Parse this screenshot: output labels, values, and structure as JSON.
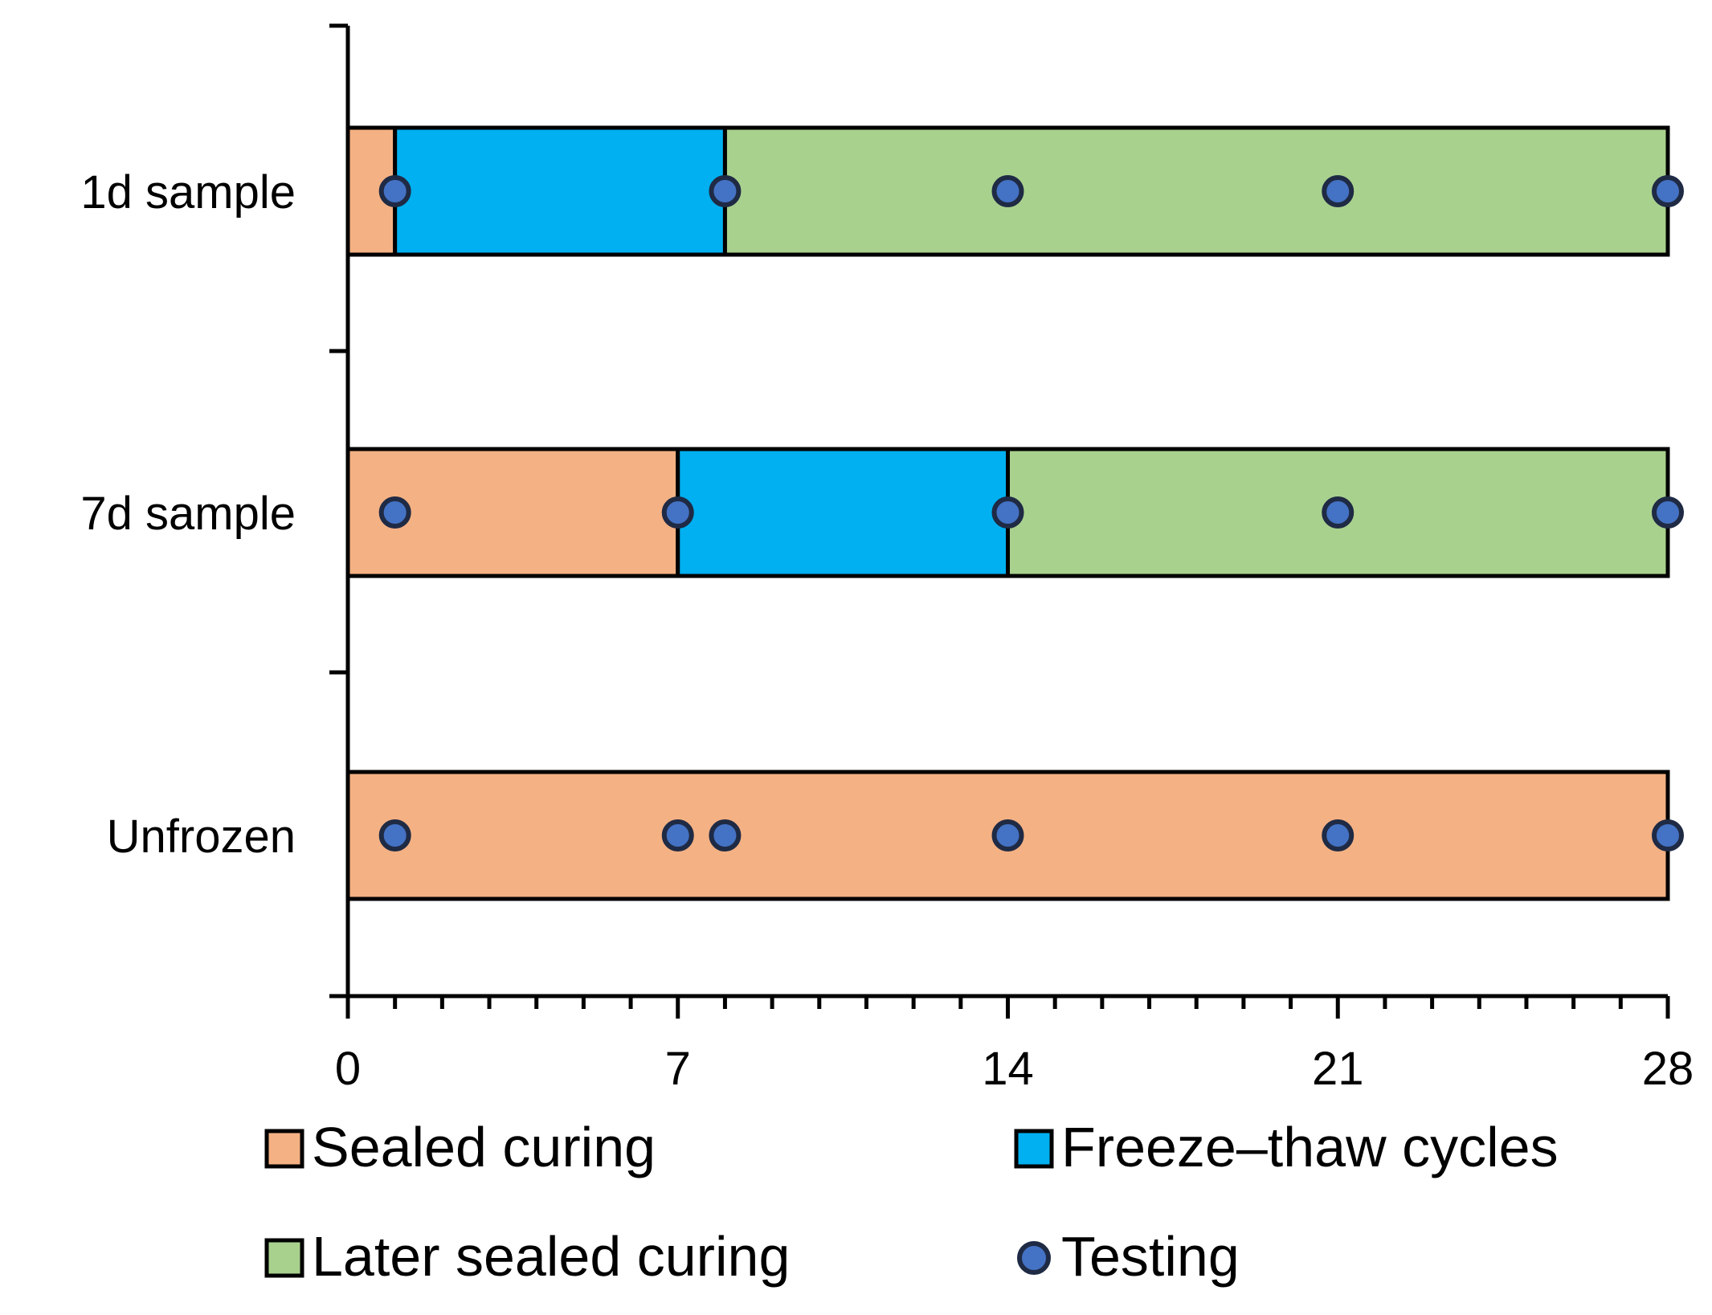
{
  "chart_data": {
    "type": "bar",
    "orientation": "horizontal",
    "stacked": true,
    "title": "",
    "xlabel": "",
    "ylabel": "",
    "xlim": [
      0,
      28
    ],
    "x_ticks": [
      "0",
      "7",
      "14",
      "21",
      "28"
    ],
    "x_tick_values": [
      0,
      7,
      14,
      21,
      28
    ],
    "x_minor_step": 1,
    "grid": false,
    "legend_position": "bottom",
    "categories": [
      "1d sample",
      "7d sample",
      "Unfrozen"
    ],
    "series": [
      {
        "name": "Sealed curing",
        "color": "#F4B183",
        "values": [
          1,
          7,
          28
        ]
      },
      {
        "name": "Freeze–thaw cycles",
        "color": "#00B0F0",
        "values": [
          7,
          7,
          0
        ]
      },
      {
        "name": "Later sealed curing",
        "color": "#A9D18E",
        "values": [
          20,
          14,
          0
        ]
      }
    ],
    "markers": {
      "name": "Testing",
      "color": "#4472C4",
      "points": [
        {
          "category": "1d sample",
          "days": [
            1,
            8,
            14,
            21,
            28
          ]
        },
        {
          "category": "7d sample",
          "days": [
            1,
            7,
            14,
            21,
            28
          ]
        },
        {
          "category": "Unfrozen",
          "days": [
            1,
            7,
            8,
            14,
            21,
            28
          ]
        }
      ]
    }
  }
}
